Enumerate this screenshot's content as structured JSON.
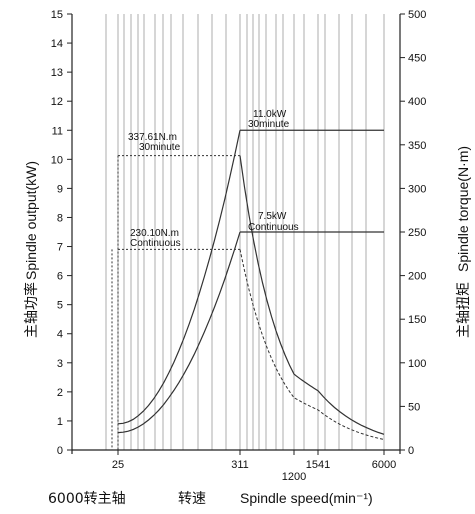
{
  "chart_data": {
    "type": "line",
    "x_scale": "nonuniform",
    "x_ticks": [
      25,
      311,
      1200,
      1541,
      6000
    ],
    "y_left": {
      "label_cn": "主轴功率",
      "label_en": "Spindle output(kW)",
      "range": [
        0,
        15
      ],
      "ticks": [
        0,
        1,
        2,
        3,
        4,
        5,
        6,
        7,
        8,
        9,
        10,
        11,
        12,
        13,
        14,
        15
      ]
    },
    "y_right": {
      "label_cn": "主轴扭矩",
      "label_en": "Spindle torque(N·m)",
      "range": [
        0,
        500
      ],
      "ticks": [
        0,
        50,
        100,
        150,
        200,
        250,
        300,
        350,
        400,
        450,
        500
      ]
    },
    "x_label": {
      "prefix": "6000转主轴",
      "cn": "转速",
      "en": "Spindle speed(min⁻¹)"
    },
    "annotations": {
      "torque_30min": {
        "line1": "337.61N.m",
        "line2": "30minute"
      },
      "torque_cont": {
        "line1": "230.10N.m",
        "line2": "Continuous"
      },
      "power_30min": {
        "line1": "11.0kW",
        "line2": "30minute"
      },
      "power_cont": {
        "line1": "7.5kW",
        "line2": "Continuous"
      }
    },
    "series": [
      {
        "axis": "left",
        "points": [
          [
            25,
            0.9
          ],
          [
            311,
            11.0
          ],
          [
            1541,
            11.0
          ],
          [
            6000,
            11.0
          ]
        ]
      },
      {
        "axis": "left",
        "points": [
          [
            25,
            0.6
          ],
          [
            311,
            7.5
          ],
          [
            1541,
            7.5
          ],
          [
            6000,
            7.5
          ]
        ]
      },
      {
        "axis": "right",
        "points": [
          [
            25,
            337.61
          ],
          [
            311,
            337.61
          ],
          [
            1200,
            87
          ],
          [
            1541,
            68
          ],
          [
            6000,
            18
          ]
        ]
      },
      {
        "axis": "right",
        "points": [
          [
            25,
            230.1
          ],
          [
            311,
            230.1
          ],
          [
            1200,
            60
          ],
          [
            1541,
            46
          ],
          [
            6000,
            12
          ]
        ]
      }
    ]
  }
}
